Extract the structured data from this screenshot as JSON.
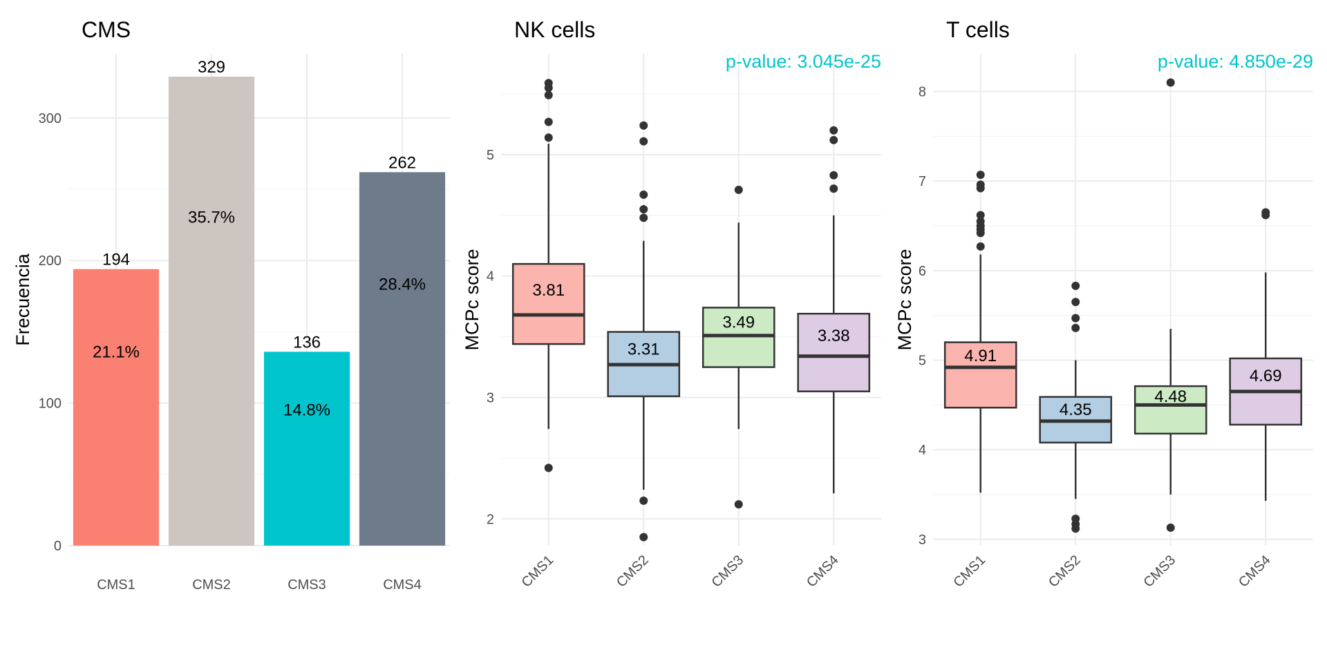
{
  "chart_data": [
    {
      "type": "bar",
      "title": "CMS",
      "xlabel": "",
      "ylabel": "Frecuencia",
      "categories": [
        "CMS1",
        "CMS2",
        "CMS3",
        "CMS4"
      ],
      "values": [
        194,
        329,
        136,
        262
      ],
      "value_labels": [
        "194",
        "329",
        "136",
        "262"
      ],
      "percent_labels": [
        "21.1%",
        "35.7%",
        "14.8%",
        "28.4%"
      ],
      "colors": [
        "#FA8072",
        "#CDC5BF",
        "#00C5CD",
        "#6E7B8B"
      ],
      "ylim": [
        0,
        345
      ],
      "yticks": [
        0,
        100,
        200,
        300
      ],
      "grid": true
    },
    {
      "type": "box",
      "title": "NK cells",
      "xlabel": "",
      "ylabel": "MCPc score",
      "annotation": "p-value: 3.045e-25",
      "annotation_color": "#00C5CD",
      "categories": [
        "CMS1",
        "CMS2",
        "CMS3",
        "CMS4"
      ],
      "colors": [
        "#FBB4AE",
        "#B3CDE3",
        "#CCEBC5",
        "#DECBE4"
      ],
      "ylim": [
        1.78,
        5.83
      ],
      "yticks": [
        2,
        3,
        4,
        5
      ],
      "grid": true,
      "boxes": [
        {
          "q1": 3.44,
          "median": 3.68,
          "q3": 4.1,
          "whisker_low": 2.74,
          "whisker_high": 5.09,
          "mean_label": "3.81",
          "outliers": [
            2.42,
            5.14,
            5.27,
            5.49,
            5.55,
            5.59
          ]
        },
        {
          "q1": 3.01,
          "median": 3.27,
          "q3": 3.54,
          "whisker_low": 2.24,
          "whisker_high": 4.29,
          "mean_label": "3.31",
          "outliers": [
            1.85,
            2.15,
            4.48,
            4.55,
            4.67,
            5.11,
            5.24
          ]
        },
        {
          "q1": 3.25,
          "median": 3.51,
          "q3": 3.74,
          "whisker_low": 2.74,
          "whisker_high": 4.44,
          "mean_label": "3.49",
          "outliers": [
            2.12,
            4.71
          ]
        },
        {
          "q1": 3.05,
          "median": 3.34,
          "q3": 3.69,
          "whisker_low": 2.21,
          "whisker_high": 4.5,
          "mean_label": "3.38",
          "outliers": [
            4.72,
            4.83,
            5.12,
            5.2
          ]
        }
      ]
    },
    {
      "type": "box",
      "title": "T cells",
      "xlabel": "",
      "ylabel": "MCPc score",
      "annotation": "p-value: 4.850e-29",
      "annotation_color": "#00C5CD",
      "categories": [
        "CMS1",
        "CMS2",
        "CMS3",
        "CMS4"
      ],
      "colors": [
        "#FBB4AE",
        "#B3CDE3",
        "#CCEBC5",
        "#DECBE4"
      ],
      "ylim": [
        2.93,
        8.42
      ],
      "yticks": [
        3,
        4,
        5,
        6,
        7,
        8
      ],
      "grid": true,
      "boxes": [
        {
          "q1": 4.47,
          "median": 4.92,
          "q3": 5.2,
          "whisker_low": 3.52,
          "whisker_high": 6.18,
          "mean_label": "4.91",
          "outliers": [
            6.27,
            6.42,
            6.46,
            6.5,
            6.55,
            6.62,
            6.92,
            6.96,
            7.07
          ]
        },
        {
          "q1": 4.08,
          "median": 4.32,
          "q3": 4.59,
          "whisker_low": 3.45,
          "whisker_high": 5.0,
          "mean_label": "4.35",
          "outliers": [
            3.12,
            3.17,
            3.23,
            5.36,
            5.47,
            5.65,
            5.83
          ]
        },
        {
          "q1": 4.18,
          "median": 4.5,
          "q3": 4.71,
          "whisker_low": 3.5,
          "whisker_high": 5.35,
          "mean_label": "4.48",
          "outliers": [
            3.13,
            8.1
          ]
        },
        {
          "q1": 4.28,
          "median": 4.65,
          "q3": 5.02,
          "whisker_low": 3.43,
          "whisker_high": 5.98,
          "mean_label": "4.69",
          "outliers": [
            6.62,
            6.65
          ]
        }
      ]
    }
  ]
}
